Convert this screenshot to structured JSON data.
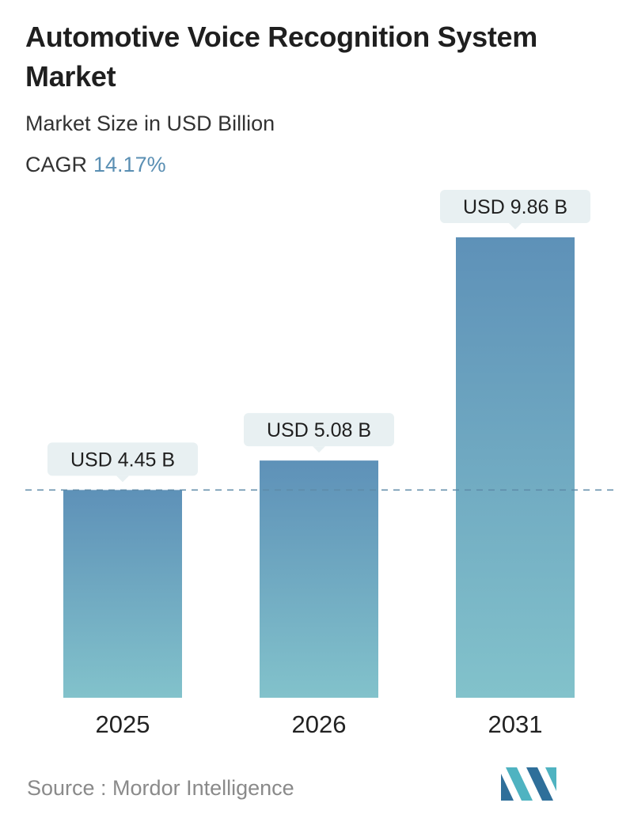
{
  "header": {
    "title": "Automotive Voice Recognition System Market",
    "subtitle": "Market Size in USD Billion",
    "cagr_label": "CAGR",
    "cagr_value": "14.17%"
  },
  "chart_data": {
    "type": "bar",
    "categories": [
      "2025",
      "2026",
      "2031"
    ],
    "values": [
      4.45,
      5.08,
      9.86
    ],
    "data_labels": [
      "USD 4.45 B",
      "USD 5.08 B",
      "USD 9.86 B"
    ],
    "title": "Automotive Voice Recognition System Market",
    "subtitle": "Market Size in USD Billion",
    "xlabel": "",
    "ylabel": "",
    "ylim": [
      0,
      9.86
    ],
    "grid": false,
    "legend": "none",
    "reference_line": {
      "value": 4.45,
      "style": "dashed"
    },
    "colors": {
      "bar_top": "#5e91b8",
      "bar_bottom": "#82c2cb",
      "label_bg": "#e8f0f2",
      "reference_line": "#5e8aa8"
    }
  },
  "footer": {
    "source": "Source :  Mordor Intelligence",
    "logo_icon": "mordor-intelligence-logo-icon"
  }
}
